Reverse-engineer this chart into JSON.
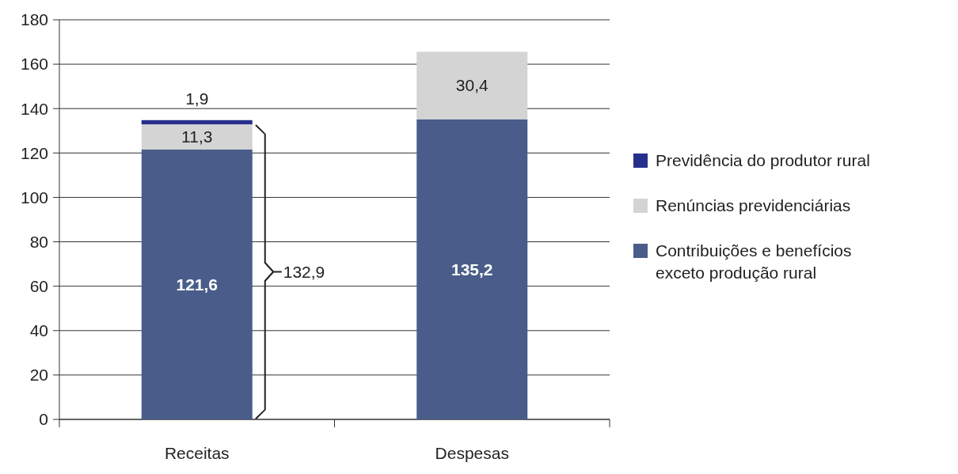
{
  "chart_data": {
    "type": "bar",
    "stacked": true,
    "categories": [
      "Receitas",
      "Despesas"
    ],
    "series": [
      {
        "name": "Contribuições e benefícios exceto produção rural",
        "color": "#4a5d8a",
        "values": [
          121.6,
          135.2
        ],
        "value_labels": [
          "121,6",
          "135,2"
        ]
      },
      {
        "name": "Renúncias previdenciárias",
        "color": "#d4d4d4",
        "values": [
          11.3,
          30.4
        ],
        "value_labels": [
          "11,3",
          "30,4"
        ]
      },
      {
        "name": "Previdência do produtor rural",
        "color": "#262f8c",
        "values": [
          1.9,
          null
        ],
        "value_labels": [
          "1,9",
          null
        ]
      }
    ],
    "ylim": [
      0,
      180
    ],
    "yticks": [
      0,
      20,
      40,
      60,
      80,
      100,
      120,
      140,
      160,
      180
    ],
    "grid": "y",
    "legend": "right",
    "annotations": [
      "132,9"
    ]
  }
}
